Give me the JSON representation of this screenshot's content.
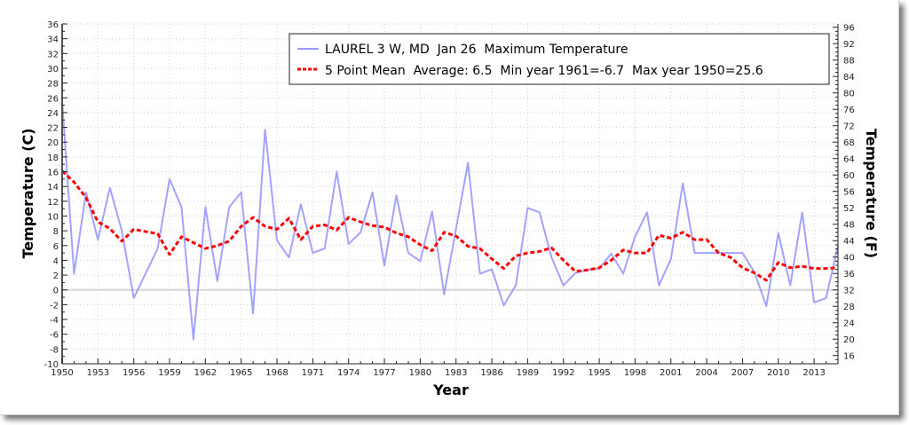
{
  "chart_data": {
    "type": "line",
    "xlabel": "Year",
    "ylabel": "Temperature (C)",
    "ylabel_right": "Temperature (F)",
    "xlim": [
      1950,
      2015
    ],
    "ylim": [
      -10,
      36
    ],
    "ylim_right": [
      14,
      96.8
    ],
    "x_ticks": [
      1950,
      1953,
      1956,
      1959,
      1962,
      1965,
      1968,
      1971,
      1974,
      1977,
      1980,
      1983,
      1986,
      1989,
      1992,
      1995,
      1998,
      2001,
      2004,
      2007,
      2010,
      2013
    ],
    "y_ticks": [
      -10,
      -8,
      -6,
      -4,
      -2,
      0,
      2,
      4,
      6,
      8,
      10,
      12,
      14,
      16,
      18,
      20,
      22,
      24,
      26,
      28,
      30,
      32,
      34,
      36
    ],
    "y_ticks_right": [
      16,
      20,
      24,
      28,
      32,
      36,
      40,
      44,
      48,
      52,
      56,
      60,
      64,
      68,
      72,
      76,
      80,
      84,
      88,
      92,
      96
    ],
    "grid": true,
    "legend_position": "top-right",
    "series": [
      {
        "name": "LAUREL 3 W, MD  Jan 26  Maximum Temperature",
        "color": "#9999ff",
        "style": "solid",
        "points": [
          [
            1950,
            25.6
          ],
          [
            1951,
            2.2
          ],
          [
            1952,
            13.2
          ],
          [
            1953,
            6.8
          ],
          [
            1954,
            13.8
          ],
          [
            1955,
            8.0
          ],
          [
            1956,
            -1.1
          ],
          [
            1958,
            5.6
          ],
          [
            1959,
            15.0
          ],
          [
            1960,
            11.2
          ],
          [
            1961,
            -6.7
          ],
          [
            1962,
            11.2
          ],
          [
            1963,
            1.2
          ],
          [
            1964,
            11.2
          ],
          [
            1965,
            13.2
          ],
          [
            1966,
            -3.2
          ],
          [
            1967,
            21.7
          ],
          [
            1968,
            6.7
          ],
          [
            1969,
            4.4
          ],
          [
            1970,
            11.6
          ],
          [
            1971,
            5.0
          ],
          [
            1972,
            5.6
          ],
          [
            1973,
            16.0
          ],
          [
            1974,
            6.2
          ],
          [
            1975,
            7.8
          ],
          [
            1976,
            13.2
          ],
          [
            1977,
            3.3
          ],
          [
            1978,
            12.8
          ],
          [
            1979,
            5.0
          ],
          [
            1980,
            3.9
          ],
          [
            1981,
            10.6
          ],
          [
            1982,
            -0.6
          ],
          [
            1984,
            17.2
          ],
          [
            1985,
            2.2
          ],
          [
            1986,
            2.8
          ],
          [
            1987,
            -2.1
          ],
          [
            1988,
            0.6
          ],
          [
            1989,
            11.1
          ],
          [
            1990,
            10.5
          ],
          [
            1991,
            4.4
          ],
          [
            1992,
            0.6
          ],
          [
            1993,
            2.3
          ],
          [
            1994,
            2.7
          ],
          [
            1995,
            2.9
          ],
          [
            1996,
            4.9
          ],
          [
            1997,
            2.2
          ],
          [
            1998,
            7.2
          ],
          [
            1999,
            10.5
          ],
          [
            2000,
            0.6
          ],
          [
            2001,
            4.2
          ],
          [
            2002,
            14.4
          ],
          [
            2003,
            5.0
          ],
          [
            2004,
            5.0
          ],
          [
            2005,
            5.0
          ],
          [
            2006,
            5.0
          ],
          [
            2007,
            5.0
          ],
          [
            2008,
            2.4
          ],
          [
            2009,
            -2.2
          ],
          [
            2010,
            7.7
          ],
          [
            2011,
            0.6
          ],
          [
            2012,
            10.5
          ],
          [
            2013,
            -1.7
          ],
          [
            2014,
            -1.1
          ],
          [
            2015,
            6.0
          ]
        ]
      },
      {
        "name": "5 Point Mean  Average: 6.5  Min year 1961=-6.7  Max year 1950=25.6",
        "color": "#ff0000",
        "style": "dashed",
        "points": [
          [
            1950,
            16.1
          ],
          [
            1951,
            14.6
          ],
          [
            1952,
            12.5
          ],
          [
            1953,
            9.2
          ],
          [
            1954,
            8.3
          ],
          [
            1955,
            6.6
          ],
          [
            1956,
            8.2
          ],
          [
            1958,
            7.6
          ],
          [
            1959,
            4.8
          ],
          [
            1960,
            7.2
          ],
          [
            1961,
            6.4
          ],
          [
            1962,
            5.6
          ],
          [
            1963,
            6.0
          ],
          [
            1964,
            6.6
          ],
          [
            1965,
            8.6
          ],
          [
            1966,
            9.8
          ],
          [
            1967,
            8.6
          ],
          [
            1968,
            8.2
          ],
          [
            1969,
            9.7
          ],
          [
            1970,
            6.8
          ],
          [
            1971,
            8.6
          ],
          [
            1972,
            8.8
          ],
          [
            1973,
            8.1
          ],
          [
            1974,
            9.8
          ],
          [
            1975,
            9.2
          ],
          [
            1976,
            8.7
          ],
          [
            1977,
            8.5
          ],
          [
            1978,
            7.7
          ],
          [
            1979,
            7.2
          ],
          [
            1980,
            6.1
          ],
          [
            1981,
            5.3
          ],
          [
            1982,
            7.8
          ],
          [
            1983,
            7.3
          ],
          [
            1984,
            5.9
          ],
          [
            1985,
            5.6
          ],
          [
            1986,
            4.2
          ],
          [
            1987,
            2.9
          ],
          [
            1988,
            4.6
          ],
          [
            1989,
            5.0
          ],
          [
            1990,
            5.2
          ],
          [
            1991,
            5.7
          ],
          [
            1992,
            4.0
          ],
          [
            1993,
            2.5
          ],
          [
            1994,
            2.7
          ],
          [
            1995,
            3.0
          ],
          [
            1996,
            4.0
          ],
          [
            1997,
            5.4
          ],
          [
            1998,
            5.0
          ],
          [
            1999,
            5.0
          ],
          [
            2000,
            7.4
          ],
          [
            2001,
            7.0
          ],
          [
            2002,
            7.8
          ],
          [
            2003,
            6.8
          ],
          [
            2004,
            6.8
          ],
          [
            2005,
            5.0
          ],
          [
            2006,
            4.4
          ],
          [
            2007,
            3.0
          ],
          [
            2008,
            2.3
          ],
          [
            2009,
            1.3
          ],
          [
            2010,
            3.7
          ],
          [
            2011,
            3.0
          ],
          [
            2012,
            3.2
          ],
          [
            2013,
            2.9
          ],
          [
            2014,
            2.9
          ],
          [
            2015,
            3.0
          ]
        ]
      }
    ],
    "legend": [
      "LAUREL 3 W, MD  Jan 26  Maximum Temperature",
      "5 Point Mean  Average: 6.5  Min year 1961=-6.7  Max year 1950=25.6"
    ],
    "zero_line": true
  }
}
